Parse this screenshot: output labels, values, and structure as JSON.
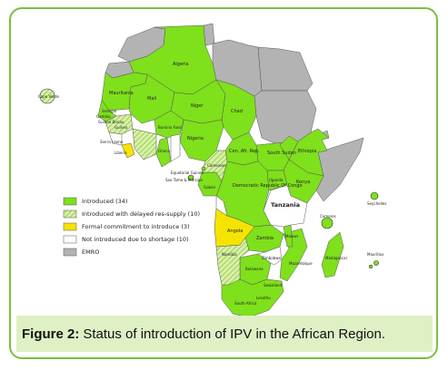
{
  "colors": {
    "introduced": "#7fe01c",
    "delayed": "#d9f0a8",
    "formal_commitment": "#f5e400",
    "not_introduced": "#ffffff",
    "emro": "#b3b3b3",
    "border": "#555555",
    "frame": "#7cbf3f",
    "caption_bg": "#dff0c5"
  },
  "legend": [
    {
      "label": "Introduced",
      "count": "(34)",
      "status": "introduced"
    },
    {
      "label": "Introduced with delayed res-supply",
      "count": "(10)",
      "status": "delayed"
    },
    {
      "label": "Formal commitment to introduce",
      "count": "(3)",
      "status": "formal_commitment"
    },
    {
      "label": "Not introduced due to shortage",
      "count": "(10)",
      "status": "not_introduced"
    },
    {
      "label": "EMRO",
      "count": "",
      "status": "emro"
    }
  ],
  "countries": {
    "algeria": "Algeria",
    "mauritania": "Mauritania",
    "mali": "Mali",
    "niger": "Niger",
    "chad": "Chad",
    "nigeria": "Nigeria",
    "cape_verde": "Cape Verde",
    "gambia": "Gambia",
    "senegal": "Senegal",
    "guinea": "Guinea",
    "guinea_bissau": "Guinea Bissau",
    "burkina_faso": "Burkina Faso",
    "sierra_leone": "Sierra Leone",
    "liberia": "Liberia",
    "ghana": "Ghana",
    "cameroon": "Cameroon",
    "car": "Cen. Afr. Rep.",
    "south_sudan": "South Sudan",
    "ethiopia": "Ethiopia",
    "equatorial_guinea": "Equatorial Guinea",
    "gabon": "Gabon",
    "sao_tome": "Sao Tome & Principe",
    "drc": "Democratic Republic Of Congo",
    "uganda": "Uganda",
    "kenya": "Kenya",
    "tanzania": "Tanzania",
    "seychelles": "Seychelles",
    "comoros": "Comoros",
    "angola": "Angola",
    "zambia": "Zambia",
    "mozambique": "Mozambique",
    "malawi": "Malawi",
    "zimbabwe": "Zimbabwe",
    "namibia": "Namibia",
    "botswana": "Botswana",
    "madagascar": "Madagascar",
    "mauritius": "Mauritius",
    "swaziland": "Swaziland",
    "lesotho": "Lesotho",
    "south_africa": "South Africa"
  },
  "caption": {
    "label": "Figure 2:",
    "text": "Status of introduction of IPV in the African Region."
  }
}
